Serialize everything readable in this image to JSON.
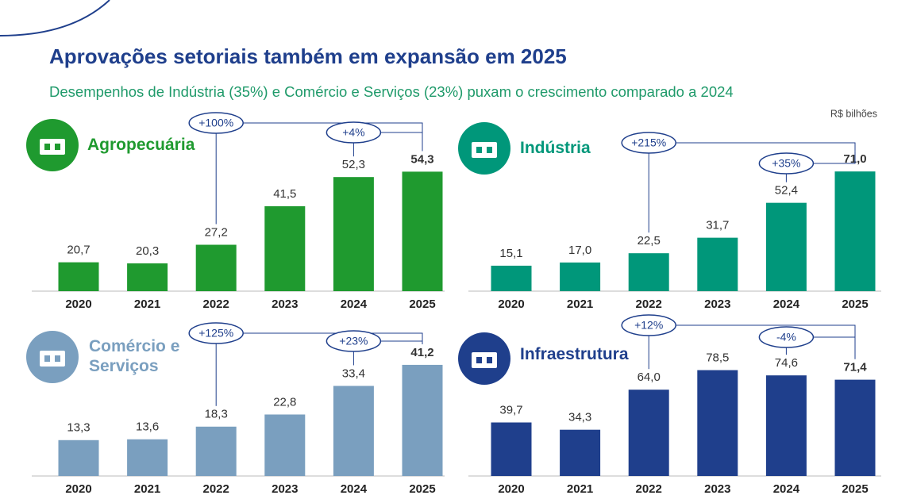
{
  "title": "Aprovações setoriais também em expansão em 2025",
  "subtitle": "Desempenhos de Indústria (35%) e Comércio e Serviços (23%) puxam o crescimento comparado a 2024",
  "unit": "R$ bilhões",
  "chart_data": [
    {
      "type": "bar",
      "title": "Agropecuária",
      "color": "#1f9a2f",
      "categories": [
        "2020",
        "2021",
        "2022",
        "2023",
        "2024",
        "2025"
      ],
      "values": [
        20.7,
        20.3,
        27.2,
        41.5,
        52.3,
        54.3
      ],
      "value_labels": [
        "20,7",
        "20,3",
        "27,2",
        "41,5",
        "52,3",
        "54,3"
      ],
      "ylim": [
        10,
        60
      ],
      "annotations": [
        "+100%",
        "+4%"
      ]
    },
    {
      "type": "bar",
      "title": "Indústria",
      "color": "#00977a",
      "categories": [
        "2020",
        "2021",
        "2022",
        "2023",
        "2024",
        "2025"
      ],
      "values": [
        15.1,
        17.0,
        22.5,
        31.7,
        52.4,
        71.0
      ],
      "value_labels": [
        "15,1",
        "17,0",
        "22,5",
        "31,7",
        "52,4",
        "71,0"
      ],
      "ylim": [
        0,
        80
      ],
      "annotations": [
        "+215%",
        "+35%"
      ]
    },
    {
      "type": "bar",
      "title": "Comércio e Serviços",
      "color": "#7a9fbf",
      "categories": [
        "2020",
        "2021",
        "2022",
        "2023",
        "2024",
        "2025"
      ],
      "values": [
        13.3,
        13.6,
        18.3,
        22.8,
        33.4,
        41.2
      ],
      "value_labels": [
        "13,3",
        "13,6",
        "18,3",
        "22,8",
        "33,4",
        "41,2"
      ],
      "ylim": [
        0,
        50
      ],
      "annotations": [
        "+125%",
        "+23%"
      ]
    },
    {
      "type": "bar",
      "title": "Infraestrutura",
      "color": "#1f3f8c",
      "categories": [
        "2020",
        "2021",
        "2022",
        "2023",
        "2024",
        "2025"
      ],
      "values": [
        39.7,
        34.3,
        64.0,
        78.5,
        74.6,
        71.4
      ],
      "value_labels": [
        "39,7",
        "34,3",
        "64,0",
        "78,5",
        "74,6",
        "71,4"
      ],
      "ylim": [
        0,
        100
      ],
      "annotations": [
        "+12%",
        "-4%"
      ]
    }
  ]
}
